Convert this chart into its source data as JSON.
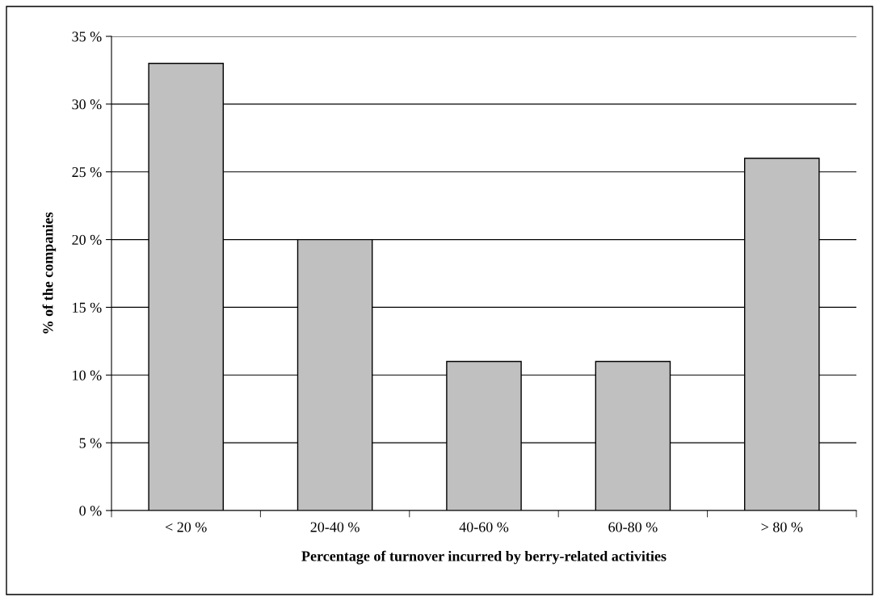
{
  "chart_data": {
    "type": "bar",
    "xlabel": "Percentage of turnover incurred by berry-related activities",
    "ylabel": "% of the companies",
    "categories": [
      "< 20 %",
      "20-40 %",
      "40-60 %",
      "60-80 %",
      "> 80 %"
    ],
    "values": [
      33,
      20,
      11,
      11,
      26
    ],
    "color": "#c0c0c0",
    "ylim": [
      0,
      35
    ],
    "yticks": [
      {
        "value": 0,
        "label": "0 %"
      },
      {
        "value": 5,
        "label": "5 %"
      },
      {
        "value": 10,
        "label": "10 %"
      },
      {
        "value": 15,
        "label": "15 %"
      },
      {
        "value": 20,
        "label": "20 %"
      },
      {
        "value": 25,
        "label": "25 %"
      },
      {
        "value": 30,
        "label": "30 %"
      },
      {
        "value": 35,
        "label": "35 %"
      }
    ],
    "grid": "y",
    "legend": false
  }
}
